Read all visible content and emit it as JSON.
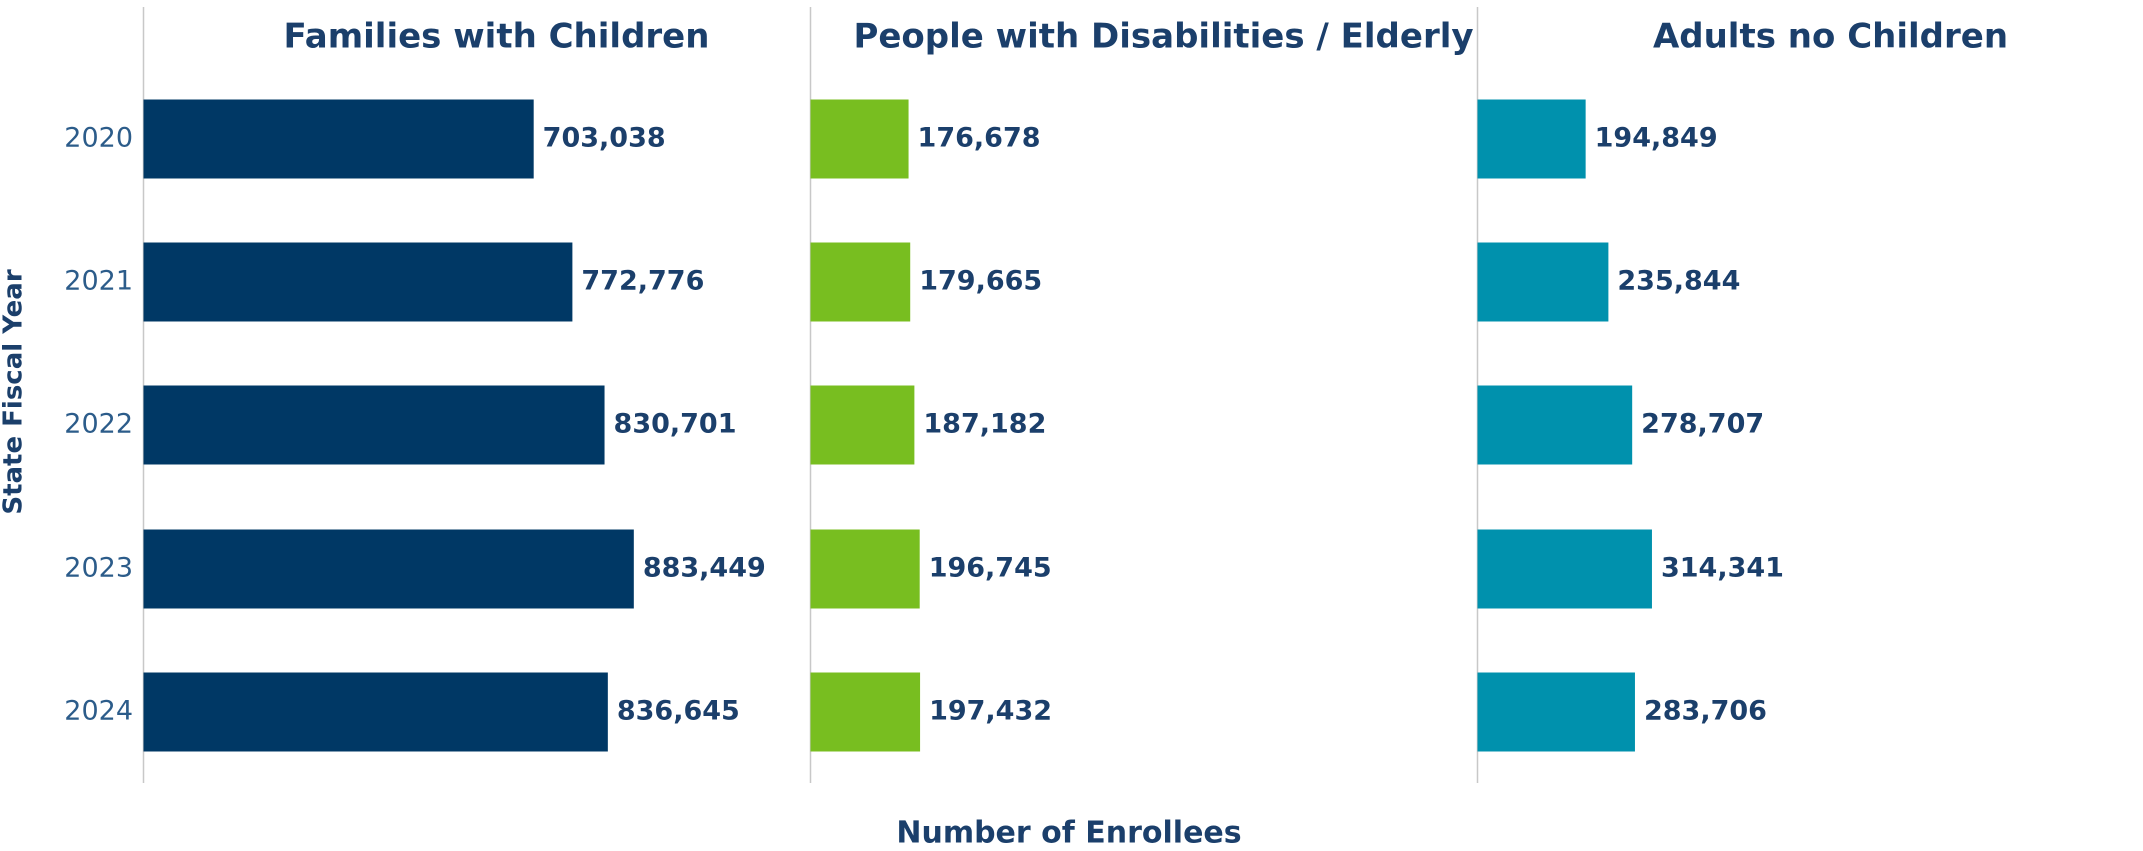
{
  "chart_data": {
    "type": "bar",
    "orientation": "horizontal",
    "categories": [
      "2020",
      "2021",
      "2022",
      "2023",
      "2024"
    ],
    "series": [
      {
        "name": "Families with Children",
        "color": "#003865",
        "values": [
          703038,
          772776,
          830701,
          883449,
          836645
        ],
        "value_labels": [
          "703,038",
          "772,776",
          "830,701",
          "883,449",
          "836,645"
        ]
      },
      {
        "name": "People with Disabilities / Elderly",
        "color": "#78be20",
        "values": [
          176678,
          179665,
          187182,
          196745,
          197432
        ],
        "value_labels": [
          "176,678",
          "179,665",
          "187,182",
          "196,745",
          "197,432"
        ]
      },
      {
        "name": "Adults no Children",
        "color": "#0091ad",
        "values": [
          194849,
          235844,
          278707,
          314341,
          283706
        ],
        "value_labels": [
          "194,849",
          "235,844",
          "278,707",
          "314,341",
          "283,706"
        ]
      }
    ],
    "xlim": [
      0,
      1200000
    ],
    "xlabel": "Number of Enrollees",
    "ylabel": "State Fiscal Year"
  }
}
